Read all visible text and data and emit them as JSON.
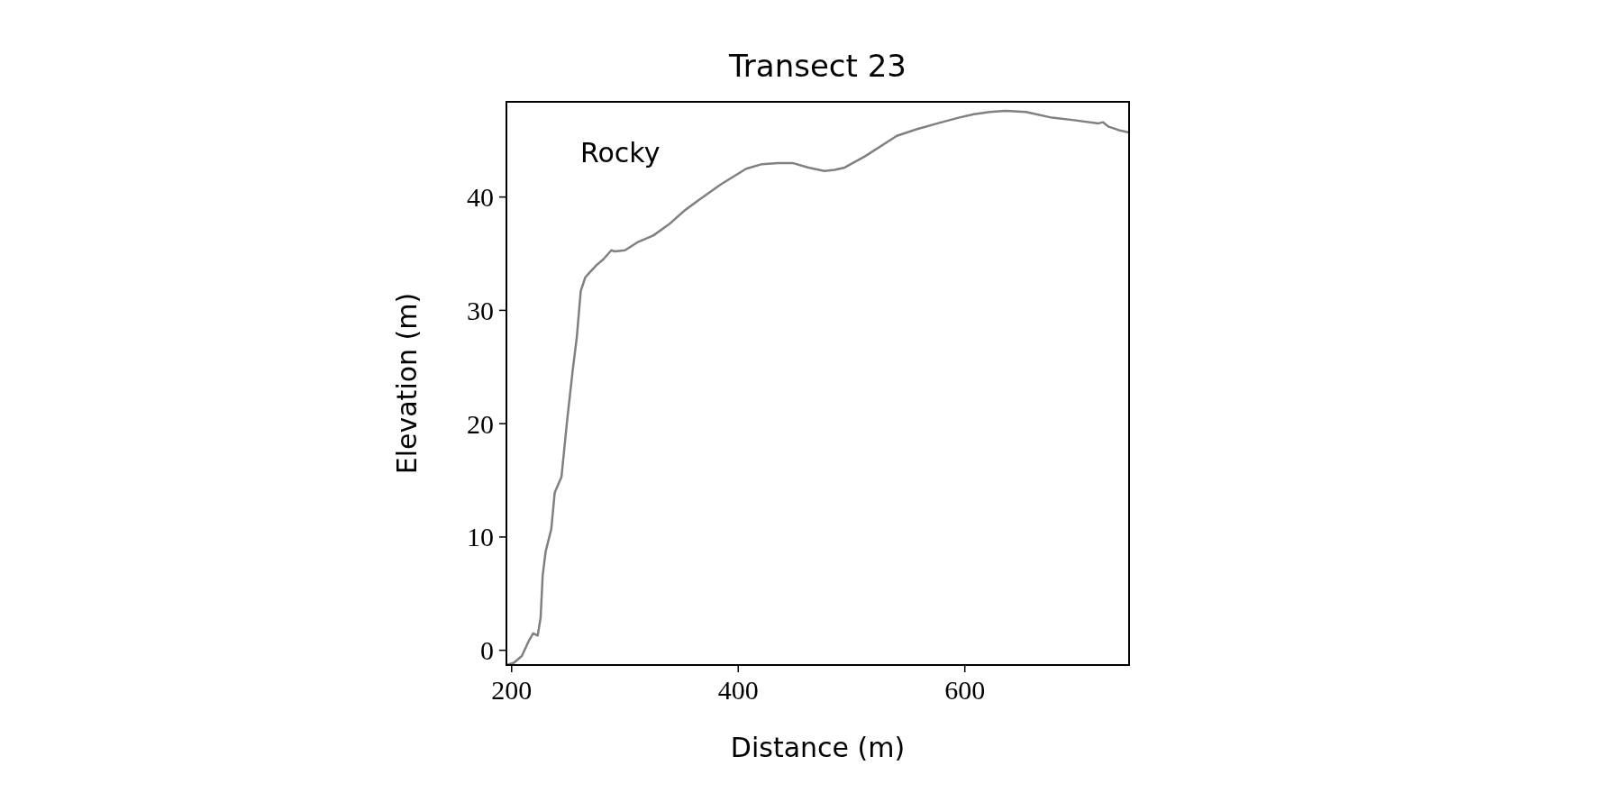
{
  "chart_data": {
    "type": "line",
    "title": "Transect 23",
    "xlabel": "Distance (m)",
    "ylabel": "Elevation (m)",
    "annotations": [
      "Rocky"
    ],
    "xlim": [
      195.4,
      745
    ],
    "ylim": [
      -1.3,
      48.4
    ],
    "xticks": [
      200,
      400,
      600
    ],
    "yticks": [
      0,
      10,
      20,
      30,
      40
    ],
    "series": [
      {
        "color": "#808080",
        "x": [
          195.4,
          202,
          209,
          215.5,
          219,
          223,
          225.6,
          227.4,
          230,
          235,
          238,
          244,
          249,
          254,
          257.5,
          261,
          265,
          268.5,
          275,
          281,
          288,
          291,
          300,
          311,
          325,
          339,
          352.5,
          366,
          384.5,
          407,
          421,
          435,
          448,
          462,
          476,
          485,
          494,
          512,
          540,
          558,
          576,
          594.5,
          608,
          622,
          636,
          654,
          677,
          695,
          718,
          722,
          727,
          736,
          745
        ],
        "values": [
          -1.3,
          -1.1,
          -0.5,
          0.9,
          1.5,
          1.3,
          2.9,
          6.6,
          8.7,
          10.7,
          13.9,
          15.3,
          20.3,
          24.8,
          27.6,
          31.7,
          32.9,
          33.3,
          34,
          34.5,
          35.3,
          35.2,
          35.3,
          36,
          36.6,
          37.6,
          38.8,
          39.8,
          41.1,
          42.5,
          42.9,
          43.0,
          43.0,
          42.6,
          42.3,
          42.4,
          42.6,
          43.6,
          45.4,
          46.0,
          46.5,
          47.0,
          47.3,
          47.5,
          47.6,
          47.5,
          47.0,
          46.8,
          46.5,
          46.6,
          46.2,
          45.9,
          45.7
        ]
      }
    ]
  }
}
